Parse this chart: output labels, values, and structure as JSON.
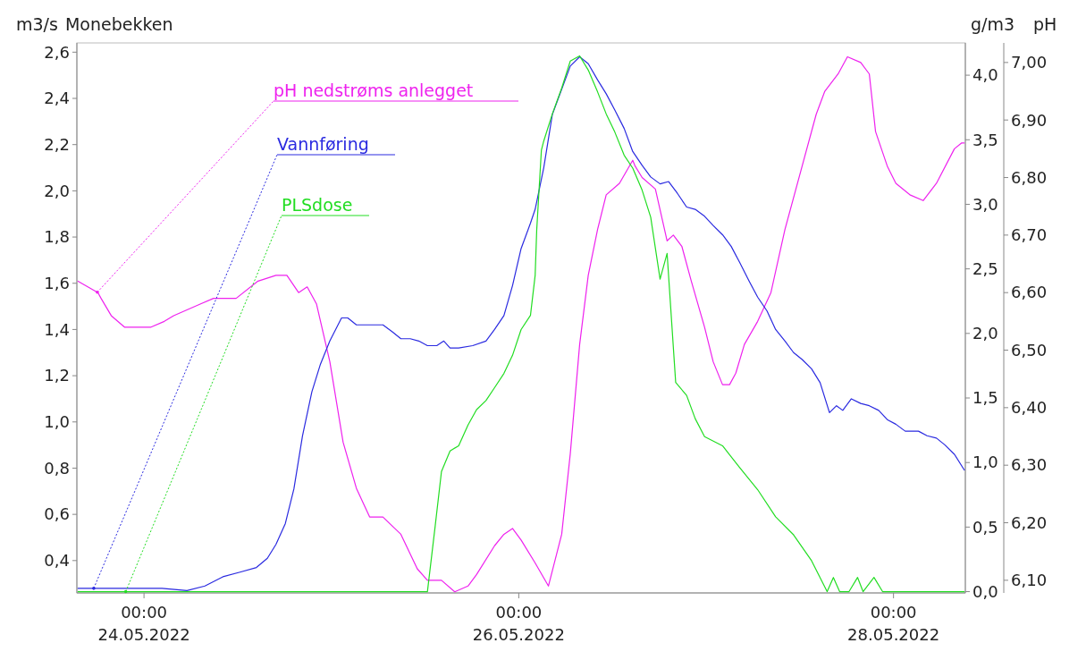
{
  "chart_data": {
    "type": "line",
    "title": "Monebekken",
    "ylabel": "m3/s",
    "y2label": "g/m3",
    "y3label": "pH",
    "xlim": [
      "2022-05-23T15:24",
      "2022-05-28T09:12"
    ],
    "xticks": [
      {
        "value": "2022-05-24T00:00",
        "label": "00:00\n24.05.2022"
      },
      {
        "value": "2022-05-26T00:00",
        "label": "00:00\n26.05.2022"
      },
      {
        "value": "2022-05-28T00:00",
        "label": "00:00\n28.05.2022"
      }
    ],
    "ylim": [
      0.26,
      2.64
    ],
    "yticks": [
      {
        "value": 0.4,
        "label": "0,4"
      },
      {
        "value": 0.6,
        "label": "0,6"
      },
      {
        "value": 0.8,
        "label": "0,8"
      },
      {
        "value": 1.0,
        "label": "1,0"
      },
      {
        "value": 1.2,
        "label": "1,2"
      },
      {
        "value": 1.4,
        "label": "1,4"
      },
      {
        "value": 1.6,
        "label": "1,6"
      },
      {
        "value": 1.8,
        "label": "1,8"
      },
      {
        "value": 2.0,
        "label": "2,0"
      },
      {
        "value": 2.2,
        "label": "2,2"
      },
      {
        "value": 2.4,
        "label": "2,4"
      },
      {
        "value": 2.6,
        "label": "2,6"
      }
    ],
    "y2lim": [
      -0.01,
      4.25
    ],
    "y2ticks": [
      {
        "value": 0,
        "label": "0,0"
      },
      {
        "value": 0.5,
        "label": "0,5"
      },
      {
        "value": 1,
        "label": "1,0"
      },
      {
        "value": 1.5,
        "label": "1,5"
      },
      {
        "value": 2,
        "label": "2,0"
      },
      {
        "value": 2.5,
        "label": "2,5"
      },
      {
        "value": 3,
        "label": "3,0"
      },
      {
        "value": 3.5,
        "label": "3,5"
      },
      {
        "value": 4,
        "label": "4,0"
      }
    ],
    "y3lim": [
      6.078,
      7.034
    ],
    "y3ticks": [
      {
        "value": 6.1,
        "label": "6,10"
      },
      {
        "value": 6.2,
        "label": "6,20"
      },
      {
        "value": 6.3,
        "label": "6,30"
      },
      {
        "value": 6.4,
        "label": "6,40"
      },
      {
        "value": 6.5,
        "label": "6,50"
      },
      {
        "value": 6.6,
        "label": "6,60"
      },
      {
        "value": 6.7,
        "label": "6,70"
      },
      {
        "value": 6.8,
        "label": "6,80"
      },
      {
        "value": 6.9,
        "label": "6,90"
      },
      {
        "value": 7.0,
        "label": "7,00"
      }
    ],
    "series": [
      {
        "name": "pH nedstrøms anlegget",
        "color": "#ee22ee",
        "axis": "y3",
        "x": [
          "2022-05-23T15:30",
          "2022-05-23T18:06",
          "2022-05-23T18:30",
          "2022-05-23T19:48",
          "2022-05-23T21:30",
          "2022-05-24T00:54",
          "2022-05-24T02:36",
          "2022-05-24T03:48",
          "2022-05-24T05:30",
          "2022-05-24T07:12",
          "2022-05-24T08:54",
          "2022-05-24T11:48",
          "2022-05-24T14:36",
          "2022-05-24T16:54",
          "2022-05-24T18:18",
          "2022-05-24T19:48",
          "2022-05-24T20:54",
          "2022-05-24T22:06",
          "2022-05-24T23:48",
          "2022-05-25T01:30",
          "2022-05-25T03:12",
          "2022-05-25T04:54",
          "2022-05-25T06:36",
          "2022-05-25T08:54",
          "2022-05-25T11:00",
          "2022-05-25T12:18",
          "2022-05-25T14:06",
          "2022-05-25T15:48",
          "2022-05-25T17:30",
          "2022-05-25T18:36",
          "2022-05-25T20:54",
          "2022-05-25T22:06",
          "2022-05-25T23:12",
          "2022-05-26T00:18",
          "2022-05-26T02:06",
          "2022-05-26T03:48",
          "2022-05-26T05:30",
          "2022-05-26T06:36",
          "2022-05-26T07:48",
          "2022-05-26T08:54",
          "2022-05-26T10:06",
          "2022-05-26T11:12",
          "2022-05-26T12:54",
          "2022-05-26T14:36",
          "2022-05-26T14:54",
          "2022-05-26T15:48",
          "2022-05-26T17:30",
          "2022-05-26T19:00",
          "2022-05-26T19:48",
          "2022-05-26T20:54",
          "2022-05-26T22:06",
          "2022-05-26T23:48",
          "2022-05-27T00:54",
          "2022-05-27T02:06",
          "2022-05-27T03:00",
          "2022-05-27T03:48",
          "2022-05-27T04:54",
          "2022-05-27T06:36",
          "2022-05-27T08:18",
          "2022-05-27T10:06",
          "2022-05-27T12:18",
          "2022-05-27T14:06",
          "2022-05-27T15:12",
          "2022-05-27T16:54",
          "2022-05-27T18:06",
          "2022-05-27T19:48",
          "2022-05-27T20:54",
          "2022-05-27T21:42",
          "2022-05-27T23:12",
          "2022-05-28T00:18",
          "2022-05-28T02:06",
          "2022-05-28T03:48",
          "2022-05-28T05:30",
          "2022-05-28T07:48",
          "2022-05-28T08:42",
          "2022-05-28T09:06"
        ],
        "values": [
          6.62,
          6.6,
          6.59,
          6.56,
          6.54,
          6.54,
          6.55,
          6.56,
          6.57,
          6.58,
          6.59,
          6.59,
          6.62,
          6.63,
          6.63,
          6.6,
          6.61,
          6.58,
          6.48,
          6.34,
          6.26,
          6.21,
          6.21,
          6.18,
          6.12,
          6.1,
          6.1,
          6.08,
          6.09,
          6.11,
          6.16,
          6.18,
          6.19,
          6.17,
          6.13,
          6.09,
          6.18,
          6.32,
          6.51,
          6.63,
          6.71,
          6.77,
          6.79,
          6.83,
          6.82,
          6.8,
          6.78,
          6.69,
          6.7,
          6.68,
          6.62,
          6.54,
          6.48,
          6.44,
          6.44,
          6.46,
          6.51,
          6.55,
          6.6,
          6.71,
          6.82,
          6.91,
          6.95,
          6.98,
          7.01,
          7.0,
          6.98,
          6.88,
          6.82,
          6.79,
          6.77,
          6.76,
          6.79,
          6.85,
          6.86,
          6.86
        ]
      },
      {
        "name": "Vannføring",
        "color": "#2a2ae0",
        "x": [
          "2022-05-23T15:30",
          "2022-05-24T02:18",
          "2022-05-24T05:30",
          "2022-05-24T07:48",
          "2022-05-24T10:06",
          "2022-05-24T12:18",
          "2022-05-24T14:24",
          "2022-05-24T15:48",
          "2022-05-24T16:54",
          "2022-05-24T18:06",
          "2022-05-24T19:12",
          "2022-05-24T20:18",
          "2022-05-24T21:30",
          "2022-05-24T22:36",
          "2022-05-24T23:48",
          "2022-05-25T01:18",
          "2022-05-25T02:06",
          "2022-05-25T03:12",
          "2022-05-25T04:18",
          "2022-05-25T06:36",
          "2022-05-25T07:48",
          "2022-05-25T08:54",
          "2022-05-25T10:06",
          "2022-05-25T11:12",
          "2022-05-25T12:18",
          "2022-05-25T13:30",
          "2022-05-25T14:24",
          "2022-05-25T15:12",
          "2022-05-25T16:18",
          "2022-05-25T18:06",
          "2022-05-25T19:48",
          "2022-05-25T20:54",
          "2022-05-25T22:06",
          "2022-05-25T23:12",
          "2022-05-26T00:18",
          "2022-05-26T01:30",
          "2022-05-26T02:06",
          "2022-05-26T03:12",
          "2022-05-26T04:18",
          "2022-05-26T05:30",
          "2022-05-26T06:36",
          "2022-05-26T07:48",
          "2022-05-26T08:54",
          "2022-05-26T10:06",
          "2022-05-26T11:12",
          "2022-05-26T12:18",
          "2022-05-26T13:30",
          "2022-05-26T14:36",
          "2022-05-26T15:48",
          "2022-05-26T16:54",
          "2022-05-26T18:06",
          "2022-05-26T19:12",
          "2022-05-26T20:18",
          "2022-05-26T21:30",
          "2022-05-26T22:36",
          "2022-05-26T23:48",
          "2022-05-27T00:54",
          "2022-05-27T02:06",
          "2022-05-27T03:12",
          "2022-05-27T04:18",
          "2022-05-27T05:30",
          "2022-05-27T06:36",
          "2022-05-27T07:48",
          "2022-05-27T08:54",
          "2022-05-27T10:06",
          "2022-05-27T11:12",
          "2022-05-27T12:18",
          "2022-05-27T13:30",
          "2022-05-27T14:36",
          "2022-05-27T15:48",
          "2022-05-27T16:42",
          "2022-05-27T17:30",
          "2022-05-27T18:36",
          "2022-05-27T19:48",
          "2022-05-27T20:54",
          "2022-05-27T22:06",
          "2022-05-27T23:12",
          "2022-05-28T00:18",
          "2022-05-28T01:30",
          "2022-05-28T03:12",
          "2022-05-28T04:18",
          "2022-05-28T05:30",
          "2022-05-28T06:36",
          "2022-05-28T07:48",
          "2022-05-28T09:06"
        ],
        "values": [
          0.28,
          0.28,
          0.27,
          0.29,
          0.33,
          0.35,
          0.37,
          0.41,
          0.47,
          0.56,
          0.71,
          0.94,
          1.13,
          1.25,
          1.35,
          1.45,
          1.45,
          1.42,
          1.42,
          1.42,
          1.39,
          1.36,
          1.36,
          1.35,
          1.33,
          1.33,
          1.35,
          1.32,
          1.32,
          1.33,
          1.35,
          1.4,
          1.46,
          1.59,
          1.75,
          1.86,
          1.92,
          2.1,
          2.33,
          2.44,
          2.54,
          2.58,
          2.55,
          2.48,
          2.42,
          2.35,
          2.27,
          2.17,
          2.11,
          2.06,
          2.03,
          2.04,
          1.99,
          1.93,
          1.92,
          1.89,
          1.85,
          1.81,
          1.76,
          1.69,
          1.61,
          1.54,
          1.48,
          1.4,
          1.35,
          1.3,
          1.27,
          1.23,
          1.17,
          1.04,
          1.07,
          1.05,
          1.1,
          1.08,
          1.07,
          1.05,
          1.01,
          0.99,
          0.96,
          0.96,
          0.94,
          0.93,
          0.9,
          0.86,
          0.79
        ]
      },
      {
        "name": "PLSdose",
        "color": "#22dd22",
        "axis": "y2",
        "x": [
          "2022-05-23T15:30",
          "2022-05-25T12:18",
          "2022-05-25T13:18",
          "2022-05-25T14:06",
          "2022-05-25T15:12",
          "2022-05-25T16:18",
          "2022-05-25T17:30",
          "2022-05-25T18:36",
          "2022-05-25T19:48",
          "2022-05-25T20:54",
          "2022-05-25T22:06",
          "2022-05-25T23:12",
          "2022-05-26T00:18",
          "2022-05-26T01:30",
          "2022-05-26T02:06",
          "2022-05-26T02:18",
          "2022-05-26T02:54",
          "2022-05-26T03:12",
          "2022-05-26T04:18",
          "2022-05-26T05:30",
          "2022-05-26T06:36",
          "2022-05-26T07:48",
          "2022-05-26T08:54",
          "2022-05-26T10:06",
          "2022-05-26T11:12",
          "2022-05-26T12:18",
          "2022-05-26T13:30",
          "2022-05-26T14:36",
          "2022-05-26T15:48",
          "2022-05-26T16:54",
          "2022-05-26T18:06",
          "2022-05-26T19:00",
          "2022-05-26T20:06",
          "2022-05-26T21:30",
          "2022-05-26T22:36",
          "2022-05-26T23:48",
          "2022-05-27T02:06",
          "2022-05-27T04:18",
          "2022-05-27T06:36",
          "2022-05-27T08:54",
          "2022-05-27T11:12",
          "2022-05-27T13:30",
          "2022-05-27T15:30",
          "2022-05-27T16:18",
          "2022-05-27T17:06",
          "2022-05-27T18:18",
          "2022-05-27T19:24",
          "2022-05-27T20:06",
          "2022-05-27T21:30",
          "2022-05-27T22:36",
          "2022-05-28T09:06"
        ],
        "values": [
          0,
          0,
          0.51,
          0.93,
          1.09,
          1.13,
          1.29,
          1.41,
          1.48,
          1.58,
          1.69,
          1.83,
          2.03,
          2.14,
          2.45,
          2.8,
          3.42,
          3.49,
          3.7,
          3.9,
          4.11,
          4.15,
          4.04,
          3.87,
          3.7,
          3.56,
          3.38,
          3.28,
          3.11,
          2.9,
          2.42,
          2.62,
          1.62,
          1.52,
          1.34,
          1.2,
          1.13,
          0.96,
          0.79,
          0.58,
          0.44,
          0.24,
          0,
          0.11,
          0,
          0,
          0.11,
          0,
          0.11,
          0,
          0
        ]
      }
    ]
  }
}
